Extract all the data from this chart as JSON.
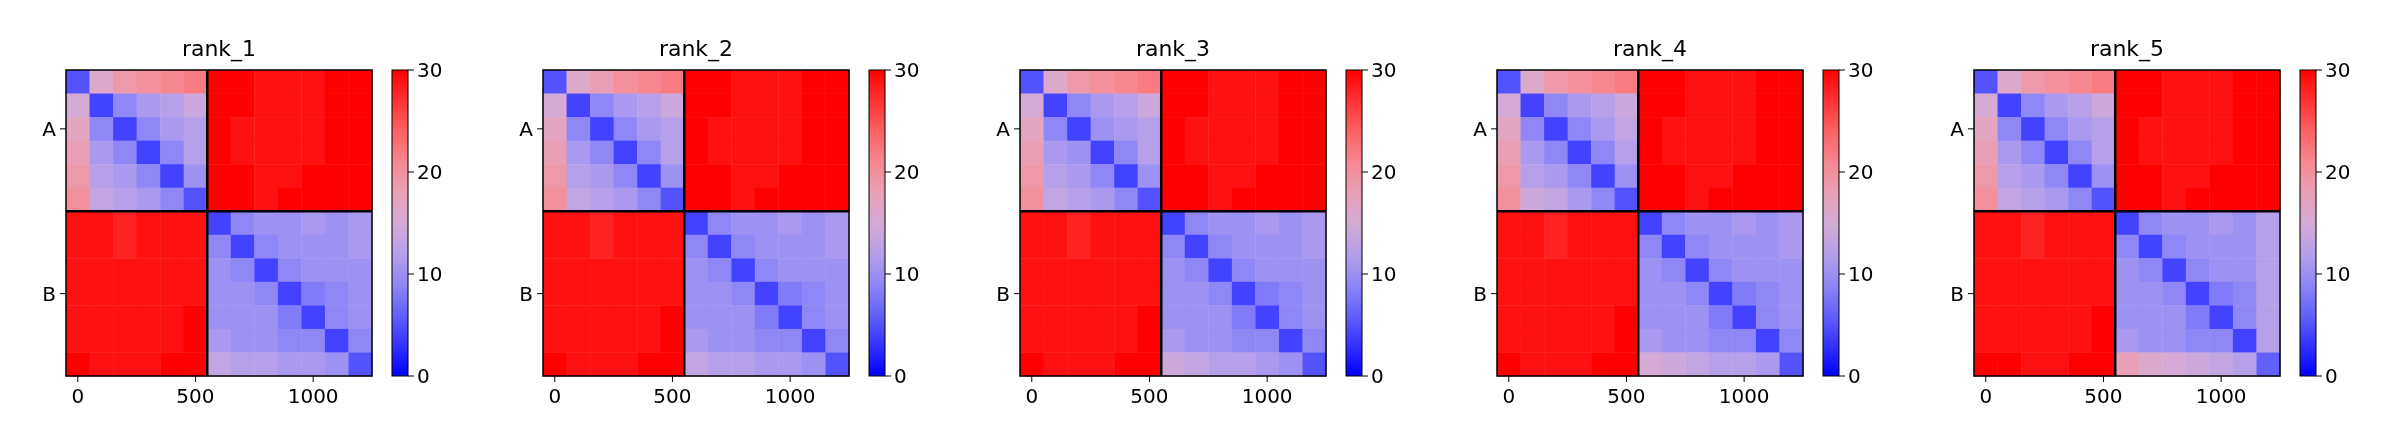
{
  "chart_data": [
    {
      "type": "heatmap",
      "title": "rank_1",
      "categories": [
        "0",
        null,
        null,
        null,
        null,
        "500",
        null,
        null,
        null,
        null,
        "1000",
        null,
        null
      ],
      "y_categories": [
        null,
        null,
        "A",
        null,
        null,
        null,
        null,
        null,
        null,
        "B",
        null,
        null,
        null
      ],
      "clim": [
        0,
        30
      ],
      "cticks": [
        0,
        10,
        20,
        30
      ],
      "cells": [
        [
          5,
          16,
          19,
          20,
          21,
          22,
          30,
          30,
          29,
          29,
          29,
          30,
          30
        ],
        [
          15,
          4,
          9,
          11,
          12,
          14,
          30,
          30,
          29,
          29,
          29,
          30,
          30
        ],
        [
          17,
          9,
          4,
          9,
          11,
          12,
          30,
          29,
          29,
          29,
          29,
          30,
          30
        ],
        [
          18,
          11,
          9,
          4,
          9,
          12,
          30,
          29,
          29,
          29,
          29,
          30,
          30
        ],
        [
          19,
          12,
          11,
          9,
          4,
          10,
          30,
          30,
          29,
          29,
          30,
          30,
          30
        ],
        [
          20,
          13,
          12,
          11,
          9,
          5,
          30,
          30,
          29,
          30,
          30,
          30,
          30
        ],
        [
          29,
          29,
          28,
          29,
          29,
          29,
          4,
          9,
          10,
          10,
          11,
          10,
          11
        ],
        [
          29,
          29,
          28,
          29,
          29,
          29,
          9,
          4,
          9,
          10,
          10,
          10,
          11
        ],
        [
          29,
          29,
          29,
          29,
          29,
          29,
          10,
          9,
          4,
          9,
          10,
          10,
          10
        ],
        [
          29,
          29,
          29,
          29,
          29,
          29,
          10,
          10,
          9,
          4,
          8,
          9,
          10
        ],
        [
          29,
          29,
          29,
          29,
          29,
          30,
          10,
          10,
          10,
          8,
          4,
          9,
          10
        ],
        [
          29,
          29,
          29,
          29,
          29,
          30,
          11,
          10,
          10,
          9,
          9,
          4,
          9
        ],
        [
          30,
          29,
          29,
          29,
          30,
          30,
          13,
          12,
          12,
          11,
          11,
          10,
          5
        ]
      ]
    },
    {
      "type": "heatmap",
      "title": "rank_2",
      "categories": [
        "0",
        null,
        null,
        null,
        null,
        "500",
        null,
        null,
        null,
        null,
        "1000",
        null,
        null
      ],
      "y_categories": [
        null,
        null,
        "A",
        null,
        null,
        null,
        null,
        null,
        null,
        "B",
        null,
        null,
        null
      ],
      "clim": [
        0,
        30
      ],
      "cticks": [
        0,
        10,
        20,
        30
      ],
      "cells": [
        [
          5,
          16,
          18,
          20,
          21,
          22,
          30,
          30,
          29,
          29,
          29,
          30,
          30
        ],
        [
          15,
          4,
          9,
          11,
          12,
          14,
          30,
          30,
          29,
          29,
          29,
          30,
          30
        ],
        [
          17,
          9,
          4,
          9,
          11,
          12,
          30,
          29,
          29,
          29,
          29,
          30,
          30
        ],
        [
          18,
          11,
          9,
          4,
          9,
          12,
          30,
          29,
          29,
          29,
          29,
          30,
          30
        ],
        [
          19,
          12,
          11,
          9,
          4,
          10,
          30,
          30,
          29,
          29,
          30,
          30,
          30
        ],
        [
          20,
          13,
          12,
          11,
          9,
          5,
          30,
          30,
          29,
          30,
          30,
          30,
          30
        ],
        [
          29,
          29,
          28,
          29,
          29,
          29,
          4,
          9,
          10,
          10,
          11,
          10,
          11
        ],
        [
          29,
          29,
          28,
          29,
          29,
          29,
          9,
          4,
          9,
          10,
          10,
          10,
          11
        ],
        [
          29,
          29,
          29,
          29,
          29,
          29,
          10,
          9,
          4,
          9,
          10,
          10,
          10
        ],
        [
          29,
          29,
          29,
          29,
          29,
          29,
          10,
          10,
          9,
          4,
          8,
          9,
          10
        ],
        [
          29,
          29,
          29,
          29,
          29,
          30,
          10,
          10,
          10,
          8,
          4,
          9,
          10
        ],
        [
          29,
          29,
          29,
          29,
          29,
          30,
          11,
          10,
          10,
          9,
          9,
          4,
          9
        ],
        [
          30,
          29,
          29,
          29,
          30,
          30,
          13,
          12,
          12,
          11,
          11,
          10,
          5
        ]
      ]
    },
    {
      "type": "heatmap",
      "title": "rank_3",
      "categories": [
        "0",
        null,
        null,
        null,
        null,
        "500",
        null,
        null,
        null,
        null,
        "1000",
        null,
        null
      ],
      "y_categories": [
        null,
        null,
        "A",
        null,
        null,
        null,
        null,
        null,
        null,
        "B",
        null,
        null,
        null
      ],
      "clim": [
        0,
        30
      ],
      "cticks": [
        0,
        10,
        20,
        30
      ],
      "cells": [
        [
          5,
          16,
          19,
          20,
          21,
          22,
          30,
          30,
          29,
          29,
          29,
          30,
          30
        ],
        [
          15,
          4,
          9,
          11,
          12,
          14,
          30,
          30,
          29,
          29,
          29,
          30,
          30
        ],
        [
          17,
          9,
          4,
          10,
          11,
          12,
          30,
          29,
          29,
          29,
          29,
          30,
          30
        ],
        [
          18,
          11,
          10,
          4,
          9,
          12,
          30,
          29,
          29,
          29,
          29,
          30,
          30
        ],
        [
          19,
          12,
          11,
          9,
          4,
          10,
          30,
          30,
          29,
          29,
          30,
          30,
          30
        ],
        [
          20,
          13,
          12,
          11,
          9,
          5,
          30,
          30,
          29,
          30,
          30,
          30,
          30
        ],
        [
          29,
          29,
          28,
          29,
          29,
          29,
          4,
          9,
          10,
          10,
          11,
          10,
          11
        ],
        [
          29,
          29,
          28,
          29,
          29,
          29,
          9,
          4,
          9,
          10,
          10,
          10,
          11
        ],
        [
          29,
          29,
          29,
          29,
          29,
          29,
          10,
          9,
          4,
          9,
          10,
          10,
          10
        ],
        [
          29,
          29,
          29,
          29,
          29,
          29,
          10,
          10,
          9,
          4,
          8,
          9,
          10
        ],
        [
          29,
          29,
          29,
          29,
          29,
          30,
          10,
          10,
          10,
          8,
          4,
          9,
          10
        ],
        [
          29,
          29,
          29,
          29,
          29,
          30,
          11,
          10,
          10,
          9,
          9,
          4,
          9
        ],
        [
          30,
          29,
          29,
          29,
          30,
          30,
          14,
          13,
          12,
          12,
          11,
          10,
          5
        ]
      ]
    },
    {
      "type": "heatmap",
      "title": "rank_4",
      "categories": [
        "0",
        null,
        null,
        null,
        null,
        "500",
        null,
        null,
        null,
        null,
        "1000",
        null,
        null
      ],
      "y_categories": [
        null,
        null,
        "A",
        null,
        null,
        null,
        null,
        null,
        null,
        "B",
        null,
        null,
        null
      ],
      "clim": [
        0,
        30
      ],
      "cticks": [
        0,
        10,
        20,
        30
      ],
      "cells": [
        [
          5,
          16,
          19,
          20,
          21,
          22,
          30,
          30,
          29,
          29,
          29,
          30,
          30
        ],
        [
          15,
          4,
          9,
          11,
          12,
          14,
          30,
          30,
          29,
          29,
          29,
          30,
          30
        ],
        [
          17,
          9,
          4,
          9,
          11,
          13,
          30,
          29,
          29,
          29,
          29,
          30,
          30
        ],
        [
          18,
          11,
          9,
          4,
          9,
          12,
          30,
          29,
          29,
          29,
          29,
          30,
          30
        ],
        [
          19,
          12,
          11,
          9,
          4,
          10,
          30,
          30,
          29,
          29,
          30,
          30,
          30
        ],
        [
          20,
          14,
          13,
          11,
          9,
          5,
          30,
          30,
          29,
          30,
          30,
          30,
          30
        ],
        [
          29,
          29,
          28,
          29,
          29,
          29,
          4,
          9,
          10,
          10,
          11,
          10,
          11
        ],
        [
          29,
          29,
          28,
          29,
          29,
          29,
          9,
          4,
          9,
          10,
          10,
          10,
          11
        ],
        [
          29,
          29,
          29,
          29,
          29,
          29,
          10,
          9,
          4,
          9,
          10,
          10,
          10
        ],
        [
          29,
          29,
          29,
          29,
          29,
          29,
          10,
          10,
          9,
          4,
          8,
          9,
          10
        ],
        [
          29,
          29,
          29,
          29,
          29,
          30,
          10,
          10,
          10,
          8,
          4,
          9,
          10
        ],
        [
          29,
          29,
          29,
          29,
          29,
          30,
          11,
          10,
          10,
          9,
          9,
          4,
          9
        ],
        [
          30,
          29,
          29,
          29,
          30,
          30,
          15,
          14,
          13,
          12,
          12,
          11,
          5
        ]
      ]
    },
    {
      "type": "heatmap",
      "title": "rank_5",
      "categories": [
        "0",
        null,
        null,
        null,
        null,
        "500",
        null,
        null,
        null,
        null,
        "1000",
        null,
        null
      ],
      "y_categories": [
        null,
        null,
        "A",
        null,
        null,
        null,
        null,
        null,
        null,
        "B",
        null,
        null,
        null
      ],
      "clim": [
        0,
        30
      ],
      "cticks": [
        0,
        10,
        20,
        30
      ],
      "cells": [
        [
          5,
          16,
          19,
          20,
          21,
          22,
          30,
          30,
          29,
          29,
          29,
          30,
          30
        ],
        [
          15,
          4,
          9,
          11,
          12,
          14,
          30,
          30,
          29,
          29,
          29,
          30,
          30
        ],
        [
          17,
          9,
          4,
          9,
          11,
          12,
          30,
          29,
          29,
          29,
          29,
          30,
          30
        ],
        [
          18,
          11,
          9,
          4,
          9,
          12,
          30,
          29,
          29,
          29,
          29,
          30,
          30
        ],
        [
          19,
          12,
          11,
          9,
          4,
          10,
          30,
          30,
          29,
          29,
          30,
          30,
          30
        ],
        [
          20,
          13,
          12,
          11,
          9,
          5,
          30,
          30,
          29,
          30,
          30,
          30,
          30
        ],
        [
          29,
          29,
          28,
          29,
          29,
          29,
          4,
          9,
          10,
          10,
          11,
          10,
          12
        ],
        [
          29,
          29,
          28,
          29,
          29,
          29,
          9,
          4,
          9,
          10,
          10,
          10,
          12
        ],
        [
          29,
          29,
          29,
          29,
          29,
          29,
          10,
          9,
          4,
          9,
          10,
          10,
          12
        ],
        [
          29,
          29,
          29,
          29,
          29,
          29,
          10,
          10,
          9,
          4,
          8,
          9,
          12
        ],
        [
          29,
          29,
          29,
          29,
          29,
          30,
          10,
          10,
          10,
          8,
          4,
          9,
          12
        ],
        [
          29,
          29,
          29,
          29,
          29,
          30,
          11,
          10,
          10,
          9,
          9,
          4,
          12
        ],
        [
          30,
          30,
          29,
          29,
          30,
          30,
          18,
          16,
          15,
          14,
          13,
          12,
          6
        ]
      ]
    }
  ]
}
